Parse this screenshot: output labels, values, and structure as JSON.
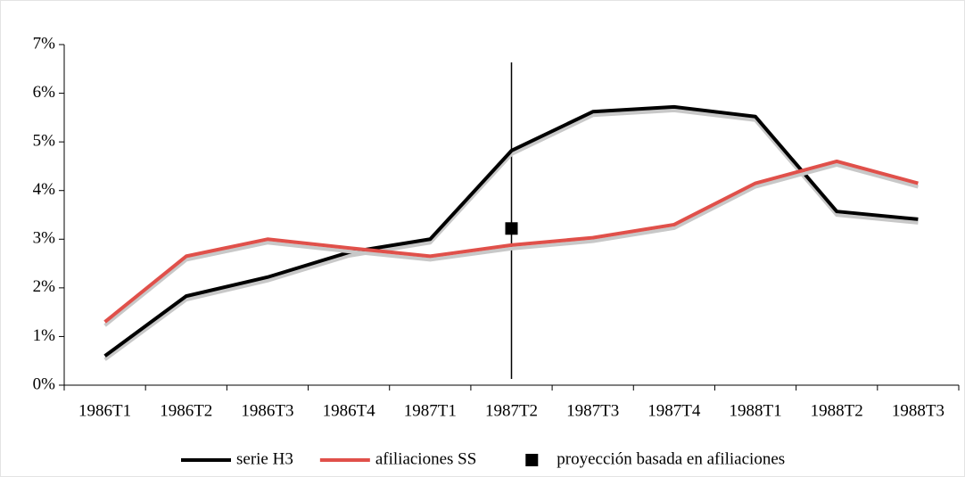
{
  "chart_data": {
    "type": "line",
    "categories": [
      "1986T1",
      "1986T2",
      "1986T3",
      "1986T4",
      "1987T1",
      "1987T2",
      "1987T3",
      "1987T4",
      "1988T1",
      "1988T2",
      "1988T3"
    ],
    "series": [
      {
        "name": "serie H3",
        "color": "#000000",
        "values": [
          0.6,
          1.83,
          2.22,
          2.73,
          3.0,
          4.82,
          5.62,
          5.72,
          5.52,
          3.57,
          3.41
        ]
      },
      {
        "name": "afiliaciones SS",
        "color": "#e0504a",
        "values": [
          1.3,
          2.65,
          3.0,
          2.82,
          2.65,
          2.88,
          3.03,
          3.3,
          4.15,
          4.6,
          4.15
        ]
      },
      {
        "name": "proyección basada en afiliaciones",
        "color": "#000000",
        "marker": "square",
        "values": [
          null,
          null,
          null,
          null,
          null,
          3.22,
          null,
          null,
          null,
          null,
          null
        ]
      }
    ],
    "ylim": [
      0,
      7
    ],
    "yticks": [
      {
        "value": 0,
        "label": "0%"
      },
      {
        "value": 1,
        "label": "1%"
      },
      {
        "value": 2,
        "label": "2%"
      },
      {
        "value": 3,
        "label": "3%"
      },
      {
        "value": 4,
        "label": "4%"
      },
      {
        "value": 5,
        "label": "5%"
      },
      {
        "value": 6,
        "label": "6%"
      },
      {
        "value": 7,
        "label": "7%"
      }
    ],
    "grid": false,
    "legend": "bottom"
  }
}
